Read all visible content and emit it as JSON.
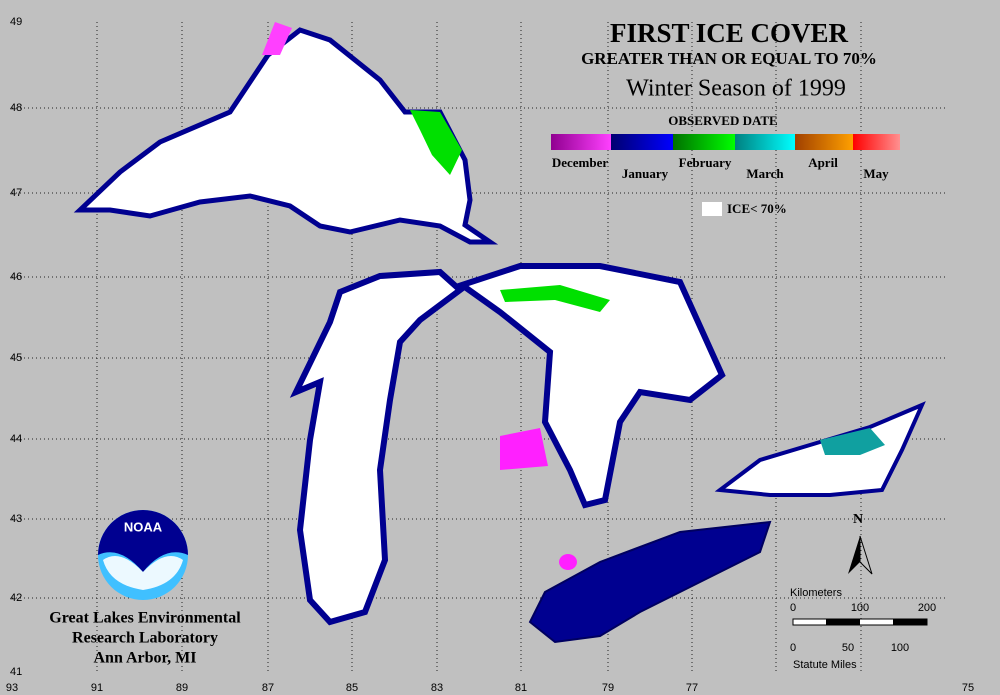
{
  "title": "FIRST ICE COVER",
  "subtitle": "GREATER THAN OR EQUAL TO 70%",
  "season": "Winter Season of 1999",
  "legend": {
    "title": "OBSERVED DATE",
    "months": [
      "December",
      "January",
      "February",
      "March",
      "April",
      "May"
    ],
    "below_label": "ICE< 70%"
  },
  "latitudes": [
    49,
    48,
    47,
    46,
    45,
    44,
    43,
    42,
    41
  ],
  "longitudes": [
    93,
    91,
    89,
    87,
    85,
    83,
    81,
    79,
    77,
    75
  ],
  "scale": {
    "km_label": "Kilometers",
    "km_ticks": [
      0,
      100,
      200
    ],
    "mi_label": "Statute Miles",
    "mi_ticks": [
      0,
      50,
      100
    ]
  },
  "north": "N",
  "logo": "NOAA",
  "credit": [
    "Great Lakes Environmental",
    "Research Laboratory",
    "Ann Arbor, MI"
  ]
}
